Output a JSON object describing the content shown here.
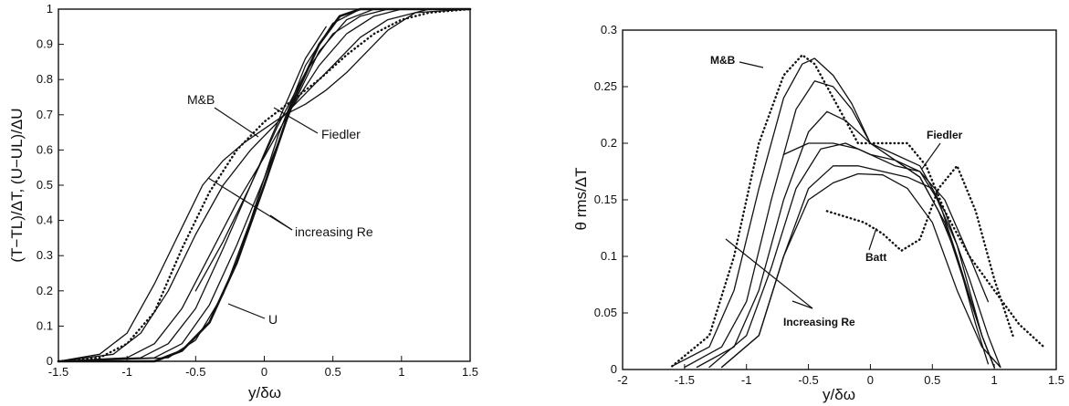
{
  "chart_data": [
    {
      "type": "line",
      "title": "",
      "xlabel": "y/δω",
      "ylabel": "(T−TL)/ΔT, (U−UL)/ΔU",
      "xlim": [
        -1.5,
        1.5
      ],
      "ylim": [
        0,
        1
      ],
      "xticks": [
        "-1.5",
        "-1",
        "-0.5",
        "0",
        "0.5",
        "1",
        "1.5"
      ],
      "yticks": [
        "0",
        "0.1",
        "0.2",
        "0.3",
        "0.4",
        "0.5",
        "0.6",
        "0.7",
        "0.8",
        "0.9",
        "1"
      ],
      "grid": false,
      "annotations": [
        {
          "text": "M&B"
        },
        {
          "text": "Fiedler"
        },
        {
          "text": "increasing Re"
        },
        {
          "text": "U"
        }
      ],
      "series": [
        {
          "style": "solid",
          "x": [
            -1.5,
            -1.2,
            -1.0,
            -0.8,
            -0.6,
            -0.45,
            -0.3,
            -0.15,
            0,
            0.15,
            0.3,
            0.45,
            0.6,
            0.75,
            0.9,
            1.1,
            1.5
          ],
          "y": [
            0,
            0.02,
            0.08,
            0.22,
            0.38,
            0.5,
            0.57,
            0.62,
            0.66,
            0.7,
            0.73,
            0.77,
            0.82,
            0.88,
            0.94,
            0.99,
            1.0
          ]
        },
        {
          "style": "solid",
          "x": [
            -1.5,
            -1.1,
            -0.9,
            -0.7,
            -0.5,
            -0.3,
            -0.1,
            0.1,
            0.3,
            0.5,
            0.7,
            0.9,
            1.2,
            1.5
          ],
          "y": [
            0,
            0.02,
            0.08,
            0.2,
            0.36,
            0.5,
            0.6,
            0.68,
            0.76,
            0.84,
            0.92,
            0.97,
            1.0,
            1.0
          ]
        },
        {
          "style": "solid",
          "x": [
            -1.5,
            -1.0,
            -0.8,
            -0.6,
            -0.4,
            -0.2,
            0,
            0.2,
            0.4,
            0.6,
            0.8,
            1.0,
            1.5
          ],
          "y": [
            0,
            0.01,
            0.05,
            0.15,
            0.3,
            0.45,
            0.58,
            0.72,
            0.84,
            0.93,
            0.98,
            1.0,
            1.0
          ]
        },
        {
          "style": "solid",
          "x": [
            -1.5,
            -0.9,
            -0.7,
            -0.5,
            -0.3,
            -0.1,
            0.1,
            0.3,
            0.5,
            0.7,
            0.9,
            1.5
          ],
          "y": [
            0,
            0.01,
            0.05,
            0.15,
            0.32,
            0.5,
            0.67,
            0.82,
            0.93,
            0.98,
            1.0,
            1.0
          ]
        },
        {
          "style": "solid",
          "x": [
            -1.5,
            -0.8,
            -0.6,
            -0.4,
            -0.2,
            0,
            0.2,
            0.4,
            0.6,
            0.8,
            1.5
          ],
          "y": [
            0,
            0.01,
            0.05,
            0.16,
            0.33,
            0.52,
            0.72,
            0.88,
            0.97,
            1.0,
            1.0
          ]
        },
        {
          "style": "solid",
          "x": [
            -1.5,
            -0.7,
            -0.5,
            -0.3,
            -0.1,
            0.1,
            0.3,
            0.5,
            0.7,
            1.5
          ],
          "y": [
            0,
            0.01,
            0.06,
            0.19,
            0.4,
            0.64,
            0.84,
            0.96,
            1.0,
            1.0
          ]
        },
        {
          "style": "solid",
          "x": [
            -0.5,
            -0.3,
            -0.1,
            0.1,
            0.3,
            0.45
          ],
          "y": [
            0.2,
            0.34,
            0.5,
            0.68,
            0.86,
            0.95
          ]
        },
        {
          "style": "dotted",
          "x": [
            -1.5,
            -1.2,
            -1.0,
            -0.8,
            -0.6,
            -0.4,
            -0.2,
            0,
            0.2,
            0.4,
            0.6,
            0.8,
            1.0,
            1.2,
            1.5
          ],
          "y": [
            0,
            0.01,
            0.05,
            0.14,
            0.32,
            0.48,
            0.6,
            0.68,
            0.74,
            0.8,
            0.87,
            0.93,
            0.97,
            0.99,
            1.0
          ]
        },
        {
          "style": "bold",
          "x": [
            -1.5,
            -0.8,
            -0.6,
            -0.4,
            -0.2,
            0,
            0.2,
            0.4,
            0.55,
            0.7,
            1.5
          ],
          "y": [
            0,
            0.0,
            0.03,
            0.11,
            0.28,
            0.5,
            0.73,
            0.9,
            0.98,
            1.0,
            1.0
          ]
        }
      ]
    },
    {
      "type": "line",
      "title": "",
      "xlabel": "y/δω",
      "ylabel": "θ rms/ΔT",
      "xlim": [
        -2,
        1.5
      ],
      "ylim": [
        0,
        0.3
      ],
      "xticks": [
        "-2",
        "-1.5",
        "-1",
        "-0.5",
        "0",
        "0.5",
        "1",
        "1.5"
      ],
      "yticks": [
        "0",
        "0.05",
        "0.1",
        "0.15",
        "0.2",
        "0.25",
        "0.3"
      ],
      "grid": false,
      "annotations": [
        {
          "text": "M&B"
        },
        {
          "text": "Fiedler"
        },
        {
          "text": "Batt"
        },
        {
          "text": "Increasing Re"
        }
      ],
      "series": [
        {
          "style": "solid",
          "x": [
            -1.6,
            -1.3,
            -1.1,
            -0.9,
            -0.7,
            -0.55,
            -0.45,
            -0.3,
            -0.15,
            0,
            0.2,
            0.4,
            0.55,
            0.7,
            0.85,
            0.95
          ],
          "y": [
            0.003,
            0.02,
            0.07,
            0.16,
            0.24,
            0.27,
            0.275,
            0.26,
            0.235,
            0.2,
            0.19,
            0.18,
            0.15,
            0.1,
            0.04,
            0.005
          ]
        },
        {
          "style": "solid",
          "x": [
            -1.5,
            -1.2,
            -1.0,
            -0.8,
            -0.6,
            -0.45,
            -0.3,
            -0.15,
            0,
            0.2,
            0.4,
            0.55,
            0.7,
            0.9,
            1.0
          ],
          "y": [
            0.002,
            0.02,
            0.06,
            0.15,
            0.23,
            0.255,
            0.25,
            0.23,
            0.2,
            0.185,
            0.17,
            0.14,
            0.1,
            0.03,
            0.002
          ]
        },
        {
          "style": "solid",
          "x": [
            -1.4,
            -1.1,
            -0.9,
            -0.7,
            -0.5,
            -0.35,
            -0.2,
            0,
            0.2,
            0.4,
            0.6,
            0.75,
            0.9,
            1.0
          ],
          "y": [
            0.002,
            0.02,
            0.07,
            0.15,
            0.21,
            0.228,
            0.22,
            0.2,
            0.185,
            0.17,
            0.13,
            0.08,
            0.03,
            0.002
          ]
        },
        {
          "style": "solid",
          "x": [
            -1.3,
            -1.0,
            -0.8,
            -0.6,
            -0.4,
            -0.2,
            0,
            0.2,
            0.4,
            0.6,
            0.8,
            0.95,
            1.05
          ],
          "y": [
            0.002,
            0.03,
            0.09,
            0.16,
            0.195,
            0.2,
            0.19,
            0.18,
            0.175,
            0.14,
            0.08,
            0.03,
            0.002
          ]
        },
        {
          "style": "solid",
          "x": [
            -1.2,
            -0.9,
            -0.7,
            -0.5,
            -0.3,
            -0.1,
            0.1,
            0.3,
            0.5,
            0.7,
            0.9,
            1.0
          ],
          "y": [
            0.002,
            0.03,
            0.1,
            0.16,
            0.18,
            0.18,
            0.175,
            0.17,
            0.16,
            0.11,
            0.03,
            0.002
          ]
        },
        {
          "style": "solid",
          "x": [
            -1.2,
            -0.9,
            -0.7,
            -0.5,
            -0.3,
            -0.1,
            0.1,
            0.3,
            0.5,
            0.7,
            0.9,
            1.05
          ],
          "y": [
            0.002,
            0.03,
            0.1,
            0.15,
            0.165,
            0.173,
            0.172,
            0.16,
            0.13,
            0.07,
            0.02,
            0.002
          ]
        },
        {
          "style": "solid",
          "x": [
            -0.7,
            -0.5,
            -0.3,
            -0.1,
            0,
            0.2,
            0.4,
            0.6,
            0.8,
            0.95
          ],
          "y": [
            0.19,
            0.2,
            0.2,
            0.195,
            0.19,
            0.185,
            0.175,
            0.15,
            0.1,
            0.06
          ]
        },
        {
          "style": "dotted",
          "x": [
            -1.6,
            -1.3,
            -1.1,
            -0.9,
            -0.7,
            -0.55,
            -0.45,
            -0.3,
            -0.1,
            0.1,
            0.3,
            0.45,
            0.6,
            0.8,
            1.0,
            1.2,
            1.4
          ],
          "y": [
            0.003,
            0.03,
            0.1,
            0.2,
            0.26,
            0.278,
            0.27,
            0.24,
            0.2,
            0.2,
            0.2,
            0.18,
            0.14,
            0.1,
            0.07,
            0.04,
            0.02
          ]
        },
        {
          "style": "dotted",
          "x": [
            -0.35,
            -0.2,
            -0.05,
            0.1,
            0.25,
            0.4,
            0.55,
            0.7,
            0.85,
            1.0,
            1.15
          ],
          "y": [
            0.14,
            0.135,
            0.13,
            0.12,
            0.105,
            0.115,
            0.16,
            0.18,
            0.14,
            0.08,
            0.03
          ]
        }
      ]
    }
  ]
}
